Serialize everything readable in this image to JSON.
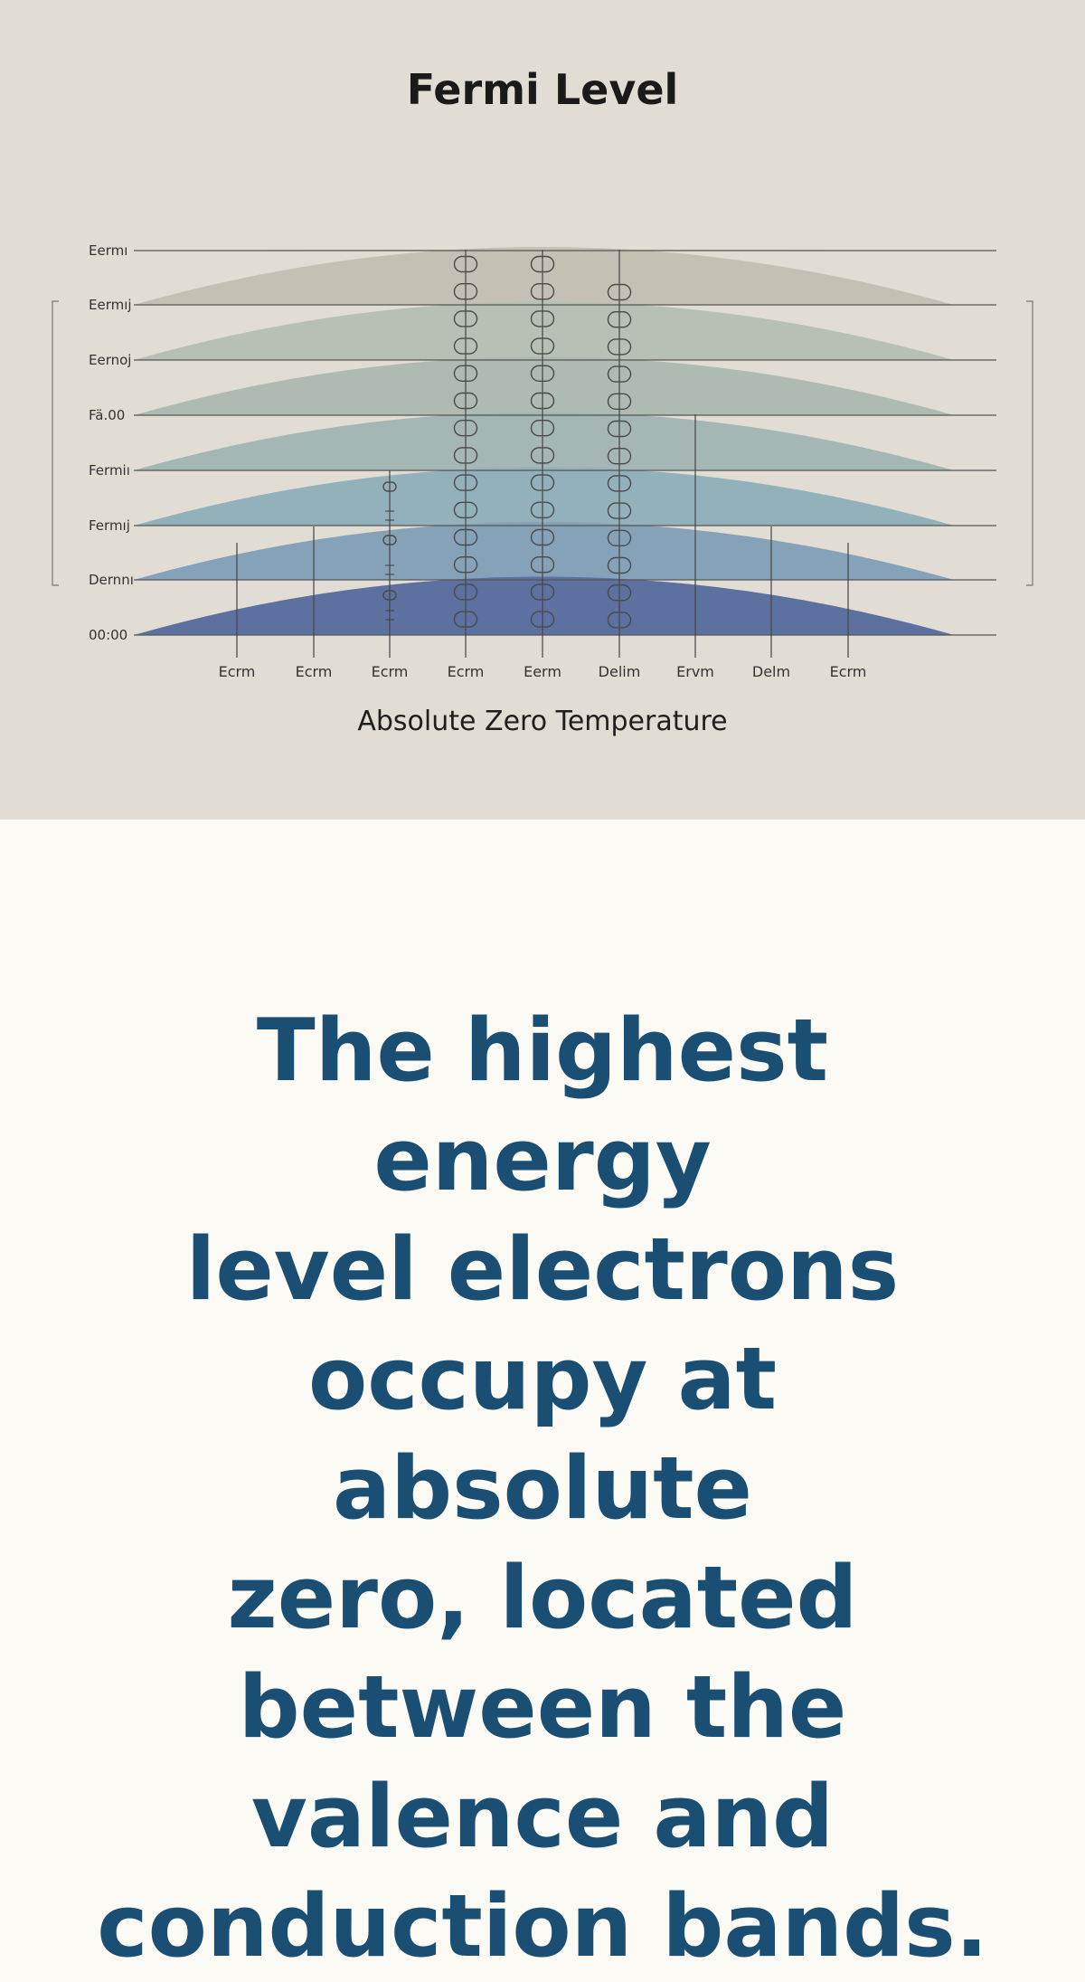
{
  "diagram": {
    "title": "Fermi Level",
    "caption": "Absolute Zero Temperature",
    "level_labels": [
      "Eermı",
      "Eermıj",
      "Eernoj",
      "Fä.00",
      "Fermiı",
      "Fermıj",
      "Dernnı",
      "00:00"
    ],
    "column_labels": [
      "Ecrm",
      "Ecrm",
      "Ecrm",
      "Ecrm",
      "Eerm",
      "Delim",
      "Ervm",
      "Delm",
      "Ecrm"
    ],
    "band_colors": [
      "#c9c4b8",
      "#c4c1b4",
      "#b8bfb4",
      "#aebbb2",
      "#a4b7b4",
      "#93b1bb",
      "#86a2b9",
      "#5c719f"
    ],
    "line_color": "#555555"
  },
  "headline": {
    "lines": [
      "The highest energy",
      "level electrons",
      "occupy at absolute",
      "zero, located",
      "between the",
      "valence and",
      "conduction bands."
    ]
  }
}
